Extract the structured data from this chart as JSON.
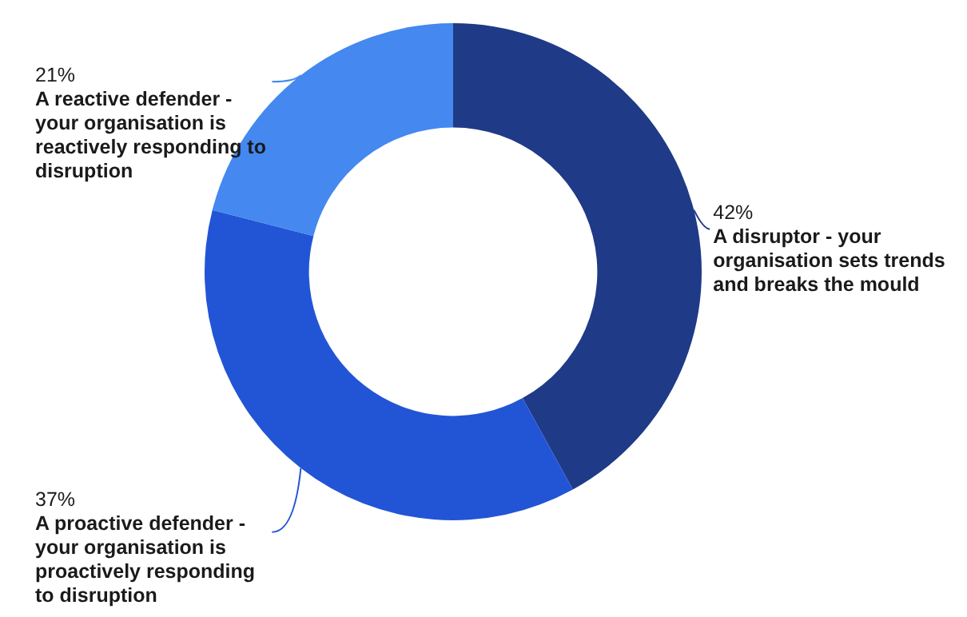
{
  "chart_data": {
    "type": "donut",
    "categories": [
      "A disruptor - your organisation sets trends and breaks the mould",
      "A proactive defender - your organisation is proactively responding to disruption",
      "A reactive defender - your organisation is reactively responding to disruption"
    ],
    "values": [
      42,
      37,
      21
    ],
    "colors": [
      "#1f3a87",
      "#2255d6",
      "#4488f0"
    ],
    "value_labels": [
      "42%",
      "37%",
      "21%"
    ],
    "legend": false
  }
}
